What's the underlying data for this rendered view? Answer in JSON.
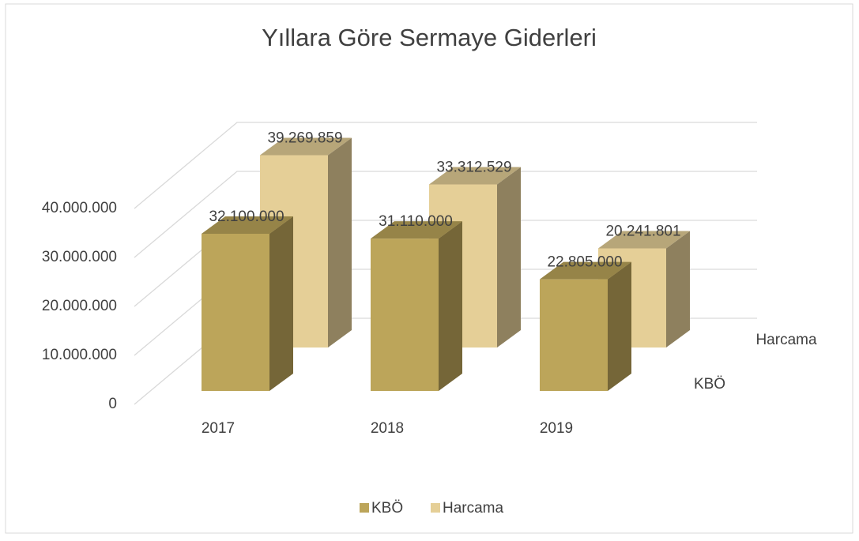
{
  "chart_data": {
    "type": "bar3d",
    "title": "Yıllara Göre Sermaye Giderleri",
    "categories": [
      "2017",
      "2018",
      "2019"
    ],
    "series": [
      {
        "name": "KBÖ",
        "color": "#bca55a",
        "values": [
          32100000,
          31110000,
          22805000
        ],
        "value_labels": [
          "32.100.000",
          "31.110.000",
          "22.805.000"
        ]
      },
      {
        "name": "Harcama",
        "color": "#e5cf97",
        "values": [
          39269859,
          33312529,
          20241801
        ],
        "value_labels": [
          "39.269.859",
          "33.312.529",
          "20.241.801"
        ]
      }
    ],
    "ylim": [
      0,
      40000000
    ],
    "yticks": [
      0,
      {
        "value": 10000000,
        "label": "10.000.000"
      },
      {
        "value": 20000000,
        "label": "20.000.000"
      },
      {
        "value": 30000000,
        "label": "30.000.000"
      },
      {
        "value": 40000000,
        "label": "40.000.000"
      }
    ],
    "grid": true,
    "legend": "bottom"
  }
}
